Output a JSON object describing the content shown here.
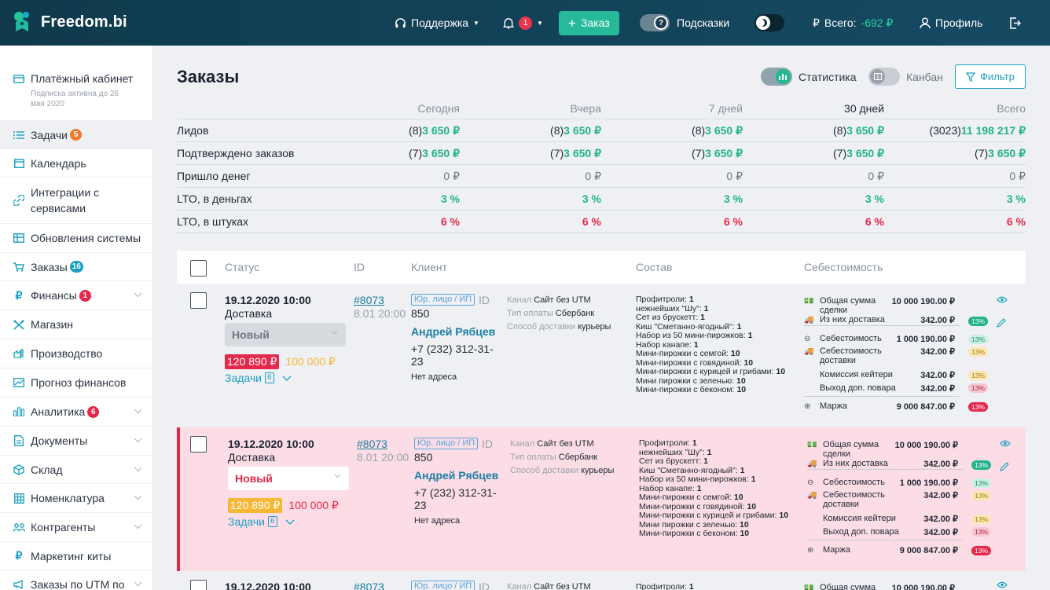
{
  "app": {
    "name": "Freedom.bi"
  },
  "topbar": {
    "support": "Поддержка",
    "notifications_count": "1",
    "order_button": "Заказ",
    "hints": "Подсказки",
    "total_label": "Всего:",
    "total_value": "-692 ₽",
    "currency": "₽",
    "profile": "Профиль"
  },
  "sidebar": {
    "payment": {
      "label": "Платёжный кабинет",
      "sub": "Подписка активна до 26 мая 2020"
    },
    "items": [
      {
        "label": "Задачи",
        "badge": "5",
        "badge_color": "#f07a2b"
      },
      {
        "label": "Календарь"
      },
      {
        "label": "Интеграции с сервисами"
      },
      {
        "label": "Обновления системы"
      },
      {
        "label": "Заказы",
        "badge": "16",
        "badge_color": "#1b9fc0"
      },
      {
        "label": "Финансы",
        "badge": "1",
        "badge_color": "#e5294a"
      },
      {
        "label": "Магазин"
      },
      {
        "label": "Производство"
      },
      {
        "label": "Прогноз финансов"
      },
      {
        "label": "Аналитика",
        "badge": "6",
        "badge_color": "#e5294a"
      },
      {
        "label": "Документы"
      },
      {
        "label": "Склад"
      },
      {
        "label": "Номенклатура"
      },
      {
        "label": "Контрагенты"
      },
      {
        "label": "Маркетинг киты"
      },
      {
        "label": "Заказы по UTM по"
      }
    ]
  },
  "page": {
    "title": "Заказы",
    "switch_stats": "Статистика",
    "switch_kanban": "Канбан",
    "filter": "Фильтр"
  },
  "stats": {
    "columns": [
      "Сегодня",
      "Вчера",
      "7 дней",
      "30 дней",
      "Всего"
    ],
    "rows": [
      {
        "label": "Лидов",
        "cells": [
          [
            "(8) ",
            "3 650 ₽"
          ],
          [
            "(8) ",
            "3 650 ₽"
          ],
          [
            "(8) ",
            "3 650 ₽"
          ],
          [
            "(8) ",
            "3 650 ₽"
          ],
          [
            "(3023) ",
            "11 198 217 ₽"
          ]
        ],
        "kind": "g"
      },
      {
        "label": "Подтверждено заказов",
        "cells": [
          [
            "(7) ",
            "3 650 ₽"
          ],
          [
            "(7) ",
            "3 650 ₽"
          ],
          [
            "(7) ",
            "3 650 ₽"
          ],
          [
            "(7) ",
            "3 650 ₽"
          ],
          [
            "(7) ",
            "3 650 ₽"
          ]
        ],
        "kind": "g"
      },
      {
        "label": "Пришло денег",
        "cells": [
          [
            "",
            "0 ₽"
          ],
          [
            "",
            "0 ₽"
          ],
          [
            "",
            "0 ₽"
          ],
          [
            "",
            "0 ₽"
          ],
          [
            "",
            "0 ₽"
          ]
        ],
        "kind": "grey"
      },
      {
        "label": "LTO, в деньгах",
        "cells": [
          [
            "",
            "3 %"
          ],
          [
            "",
            "3 %"
          ],
          [
            "",
            "3 %"
          ],
          [
            "",
            "3 %"
          ],
          [
            "",
            "3 %"
          ]
        ],
        "kind": "g"
      },
      {
        "label": "LTO, в штуках",
        "cells": [
          [
            "",
            "6 %"
          ],
          [
            "",
            "6 %"
          ],
          [
            "",
            "6 %"
          ],
          [
            "",
            "6 %"
          ],
          [
            "",
            "6 %"
          ]
        ],
        "kind": "r"
      }
    ]
  },
  "orders_table": {
    "headers": {
      "status": "Статус",
      "id": "ID",
      "client": "Клиент",
      "composition": "Состав",
      "cost": "Себестоимость"
    },
    "orders": [
      {
        "datetime": "19.12.2020 10:00",
        "type": "Доставка",
        "status": "Новый",
        "price": "120 890 ₽",
        "price2": "100 000 ₽",
        "tasks": "Задачи",
        "tasks_count": "6",
        "id": "#8073",
        "id_time": "8.01 20:00",
        "client_type": "Юр. лицо / ИП",
        "id_label": "ID",
        "client_num": "850",
        "client_name": "Андрей Рябцев",
        "phone": "+7 (232) 312-31-23",
        "address": "Нет адреса",
        "channel_label": "Канал",
        "channel": "Сайт без UTM",
        "pay_label": "Тип оплаты",
        "pay": "Сбербанк",
        "delivery_label": "Способ доставки",
        "delivery": "курьеры",
        "composition": [
          [
            "Профитроли: ",
            "1"
          ],
          [
            "нежнейших \"Шу\": ",
            "1"
          ],
          [
            "Сет из брускетт: ",
            "1"
          ],
          [
            "Киш \"Сметанно-ягодный\": ",
            "1"
          ],
          [
            "Набор из 50 мини-пирожков: ",
            "1"
          ],
          [
            "Набор канапе: ",
            "1"
          ],
          [
            "Мини-пирожки с семгой: ",
            "10"
          ],
          [
            "Мини-пирожки с говядиной: ",
            "10"
          ],
          [
            "Мини-пирожки с курицей и грибами: ",
            "10"
          ],
          [
            "Мини пирожки с зеленью: ",
            "10"
          ],
          [
            "Мини-пирожки с беконом: ",
            "10"
          ]
        ],
        "costs": [
          {
            "label": "Общая сумма сделки",
            "value": "10 000 190.00 ₽",
            "pct": ""
          },
          {
            "label": "Из них доставка",
            "value": "342.00 ₽",
            "pct": "13%",
            "pc": "G"
          },
          {
            "label": "Себестоимость",
            "value": "1 000 190.00 ₽",
            "pct": "13%",
            "pc": "g"
          },
          {
            "label": "Себестоимость доставки",
            "value": "342.00 ₽",
            "pct": "13%",
            "pc": "y"
          },
          {
            "label": "Комиссия кейтери",
            "value": "342.00 ₽",
            "pct": "13%",
            "pc": "y"
          },
          {
            "label": "Выход доп. повара",
            "value": "342.00 ₽",
            "pct": "13%",
            "pc": "r2"
          },
          {
            "label": "Маржа",
            "value": "9 000 847.00 ₽",
            "pct": "13%",
            "pc": "r"
          }
        ]
      },
      {
        "datetime": "19.12.2020 10:00",
        "type": "Доставка",
        "status": "Новый",
        "price": "120 890 ₽",
        "price2": "100 000 ₽",
        "tasks": "Задачи",
        "tasks_count": "6",
        "id": "#8073",
        "id_time": "8.01 20:00",
        "client_type": "Юр. лицо / ИП",
        "id_label": "ID",
        "client_num": "850",
        "client_name": "Андрей Рябцев",
        "phone": "+7 (232) 312-31-23",
        "address": "Нет адреса",
        "channel_label": "Канал",
        "channel": "Сайт без UTM",
        "pay_label": "Тип оплаты",
        "pay": "Сбербанк",
        "delivery_label": "Способ доставки",
        "delivery": "курьеры",
        "composition": [
          [
            "Профитроли: ",
            "1"
          ],
          [
            "нежнейших \"Шу\": ",
            "1"
          ],
          [
            "Сет из брускетт: ",
            "1"
          ],
          [
            "Киш \"Сметанно-ягодный\": ",
            "1"
          ],
          [
            "Набор из 50 мини-пирожков: ",
            "1"
          ],
          [
            "Набор канапе: ",
            "1"
          ],
          [
            "Мини-пирожки с семгой: ",
            "10"
          ],
          [
            "Мини-пирожки с говядиной: ",
            "10"
          ],
          [
            "Мини-пирожки с курицей и грибами: ",
            "10"
          ],
          [
            "Мини пирожки с зеленью: ",
            "10"
          ],
          [
            "Мини-пирожки с беконом: ",
            "10"
          ]
        ],
        "costs": [
          {
            "label": "Общая сумма сделки",
            "value": "10 000 190.00 ₽",
            "pct": ""
          },
          {
            "label": "Из них доставка",
            "value": "342.00 ₽",
            "pct": "13%",
            "pc": "G"
          },
          {
            "label": "Себестоимость",
            "value": "1 000 190.00 ₽",
            "pct": "13%",
            "pc": "g"
          },
          {
            "label": "Себестоимость доставки",
            "value": "342.00 ₽",
            "pct": "13%",
            "pc": "y"
          },
          {
            "label": "Комиссия кейтери",
            "value": "342.00 ₽",
            "pct": "13%",
            "pc": "y"
          },
          {
            "label": "Выход доп. повара",
            "value": "342.00 ₽",
            "pct": "13%",
            "pc": "r2"
          },
          {
            "label": "Маржа",
            "value": "9 000 847.00 ₽",
            "pct": "13%",
            "pc": "r"
          }
        ]
      },
      {
        "datetime": "19.12.2020 10:00",
        "id": "#8073",
        "client_type": "Юр. лицо / ИП",
        "id_label": "ID",
        "channel_label": "Канал",
        "channel": "Сайт без UTM",
        "comp_first": "Профитроли: ",
        "comp_first_q": "1",
        "cost_first": "Общая сумма",
        "cost_first_v": "10 000 190.00 ₽"
      }
    ]
  }
}
